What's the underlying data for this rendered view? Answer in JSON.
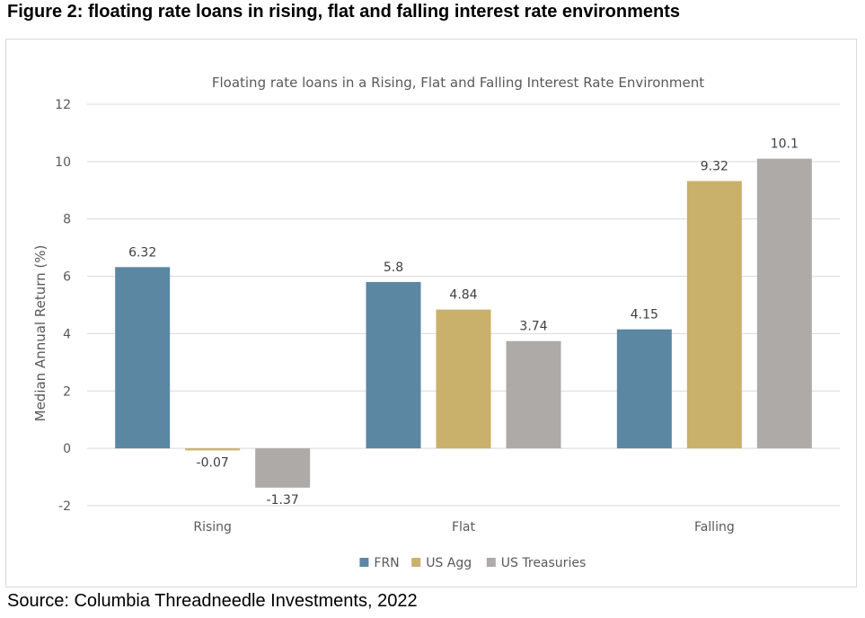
{
  "figure_title": "Figure 2: floating rate loans in rising, flat and falling interest rate environments",
  "source": "Source: Columbia Threadneedle Investments, 2022",
  "chart_data": {
    "type": "bar",
    "title": "Floating rate loans in a Rising, Flat and Falling Interest Rate Environment",
    "xlabel": "",
    "ylabel": "Median Annual Return (%)",
    "categories": [
      "Rising",
      "Flat",
      "Falling"
    ],
    "ylim": [
      -2,
      12
    ],
    "yticks": [
      -2,
      0,
      2,
      4,
      6,
      8,
      10,
      12
    ],
    "grid": true,
    "legend_position": "bottom",
    "series": [
      {
        "name": "FRN",
        "color": "#5b87a3",
        "values": [
          6.32,
          5.8,
          4.15
        ],
        "labels": [
          "6.32",
          "5.8",
          "4.15"
        ]
      },
      {
        "name": "US Agg",
        "color": "#c9b06b",
        "values": [
          -0.07,
          4.84,
          9.32
        ],
        "labels": [
          "-0.07",
          "4.84",
          "9.32"
        ]
      },
      {
        "name": "US Treasuries",
        "color": "#aeaaa7",
        "values": [
          -1.37,
          3.74,
          10.1
        ],
        "labels": [
          "-1.37",
          "3.74",
          "10.1"
        ]
      }
    ]
  }
}
